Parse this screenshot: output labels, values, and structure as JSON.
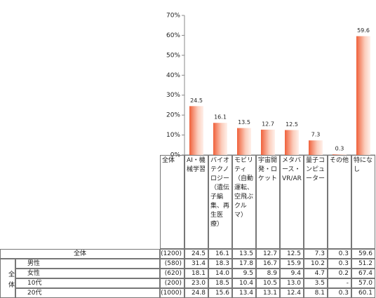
{
  "chart_data": {
    "type": "bar",
    "categories": [
      "AI・機械学習",
      "バイオテクノロジー（遺伝子編集、再生医療）",
      "モビリティ（自動運転、空飛ぶクルマ）",
      "宇宙開発・ロケット",
      "メタバース・VR/AR",
      "量子コンピューター",
      "その他",
      "特になし"
    ],
    "values": [
      24.5,
      16.1,
      13.5,
      12.7,
      12.5,
      7.3,
      0.3,
      59.6
    ],
    "ylim": [
      0,
      70
    ],
    "yticks": [
      {
        "value": 0,
        "label": "0%"
      },
      {
        "value": 10,
        "label": "10%"
      },
      {
        "value": 20,
        "label": "20%"
      },
      {
        "value": 30,
        "label": "30%"
      },
      {
        "value": 40,
        "label": "40%"
      },
      {
        "value": 50,
        "label": "50%"
      },
      {
        "value": 60,
        "label": "60%"
      },
      {
        "value": 70,
        "label": "70%"
      }
    ],
    "color": "#f0603a"
  },
  "table": {
    "header_total": "全体",
    "total_row": {
      "label": "全体",
      "n": "(1200)"
    },
    "group": "全体",
    "rows": [
      {
        "label": "男性",
        "n": "(580)",
        "values": [
          "31.4",
          "18.3",
          "17.8",
          "16.7",
          "15.9",
          "10.2",
          "0.3",
          "51.2"
        ]
      },
      {
        "label": "女性",
        "n": "(620)",
        "values": [
          "18.1",
          "14.0",
          "9.5",
          "8.9",
          "9.4",
          "4.7",
          "0.2",
          "67.4"
        ]
      },
      {
        "label": "10代",
        "n": "(200)",
        "values": [
          "23.0",
          "18.5",
          "10.4",
          "10.5",
          "13.0",
          "3.5",
          "-",
          "57.0"
        ]
      },
      {
        "label": "20代",
        "n": "(1000)",
        "values": [
          "24.8",
          "15.6",
          "13.4",
          "13.1",
          "12.4",
          "8.1",
          "0.3",
          "60.1"
        ]
      }
    ]
  }
}
